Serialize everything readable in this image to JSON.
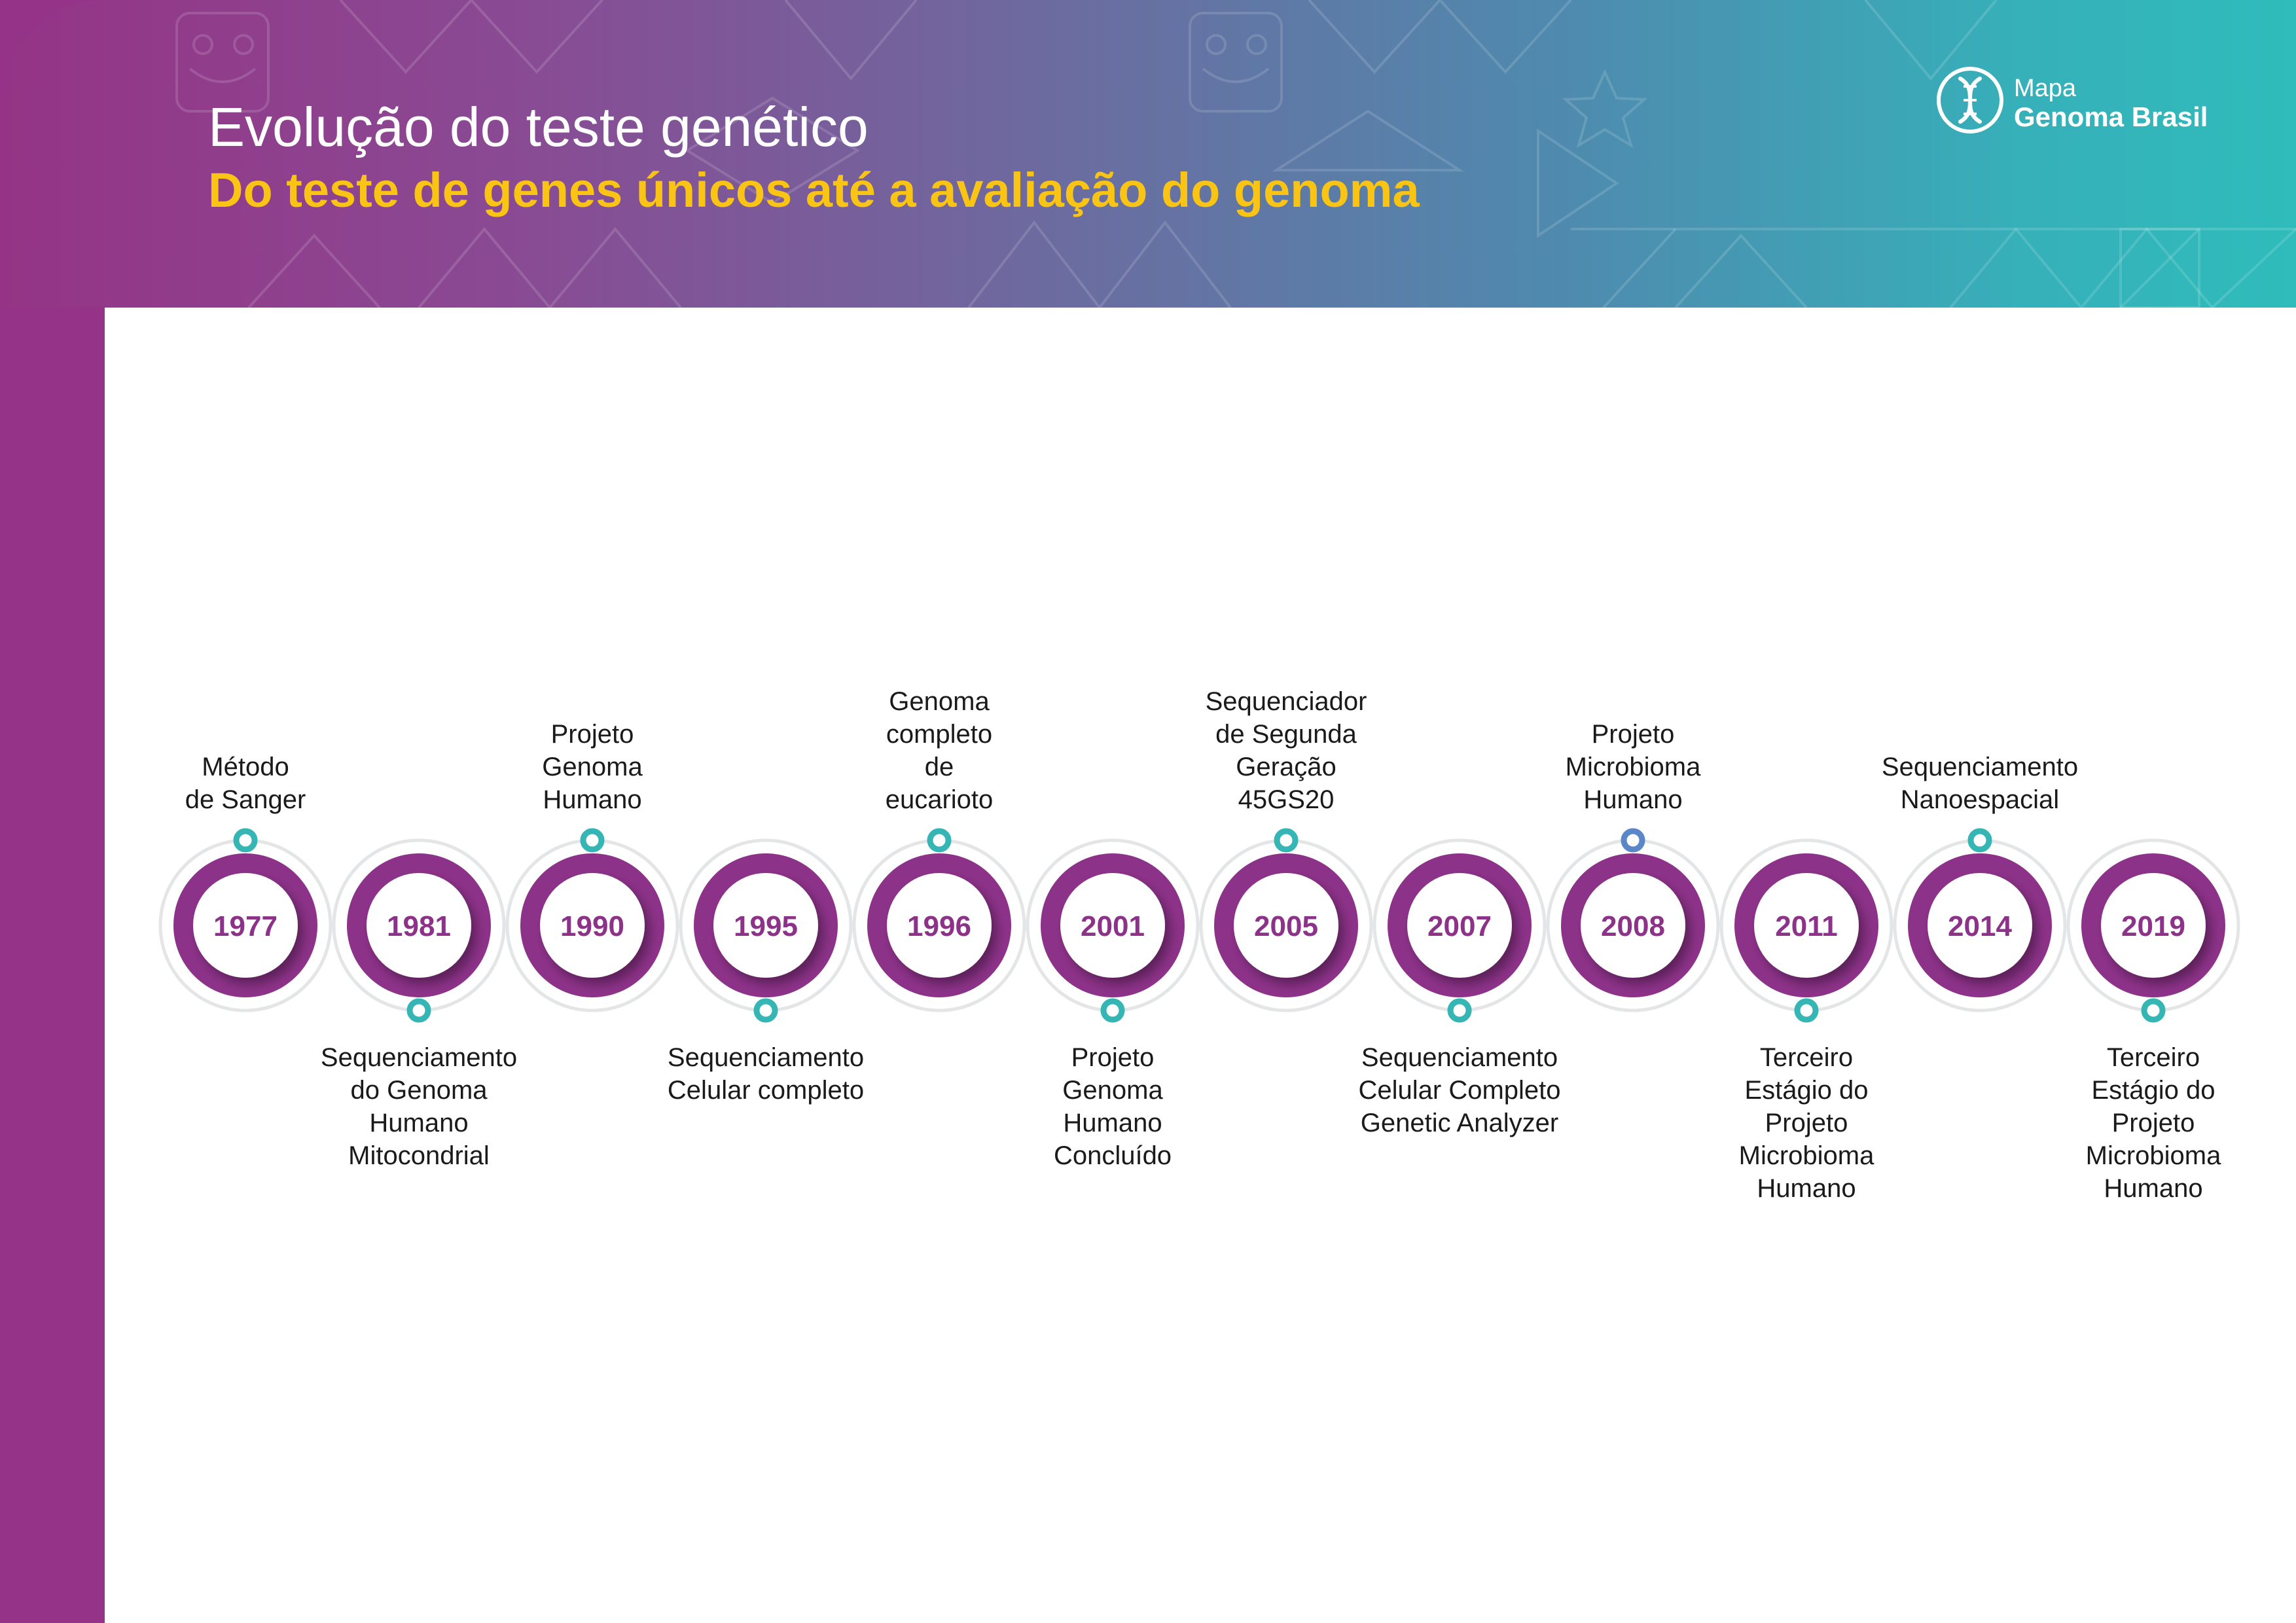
{
  "header": {
    "title": "Evolução do teste genético",
    "subtitle": "Do teste de genes únicos até a avaliação do genoma",
    "colors": {
      "title": "#ffffff",
      "subtitle": "#f9c414",
      "gradient_start": "#953486",
      "gradient_end": "#2fbcbb",
      "sidebar": "#943387"
    }
  },
  "logo": {
    "icon": "dna-icon",
    "line1": "Mapa",
    "line2": "Genoma Brasil"
  },
  "timeline": {
    "colors": {
      "ring": "#8d3289",
      "dot": "#36b5b5",
      "dot_highlight": "#5b86c8",
      "outer_ring": "#e3e5e7"
    },
    "events": [
      {
        "year": "1977",
        "label": "Método\nde Sanger",
        "position": "above"
      },
      {
        "year": "1981",
        "label": "Sequenciamento\ndo Genoma\nHumano\nMitocondrial",
        "position": "below"
      },
      {
        "year": "1990",
        "label": "Projeto\nGenoma\nHumano",
        "position": "above"
      },
      {
        "year": "1995",
        "label": "Sequenciamento\nCelular completo",
        "position": "below"
      },
      {
        "year": "1996",
        "label": "Genoma\ncompleto\nde\neucarioto",
        "position": "above"
      },
      {
        "year": "2001",
        "label": "Projeto\nGenoma\nHumano\nConcluído",
        "position": "below"
      },
      {
        "year": "2005",
        "label": "Sequenciador\nde Segunda\nGeração\n45GS20",
        "position": "above"
      },
      {
        "year": "2007",
        "label": "Sequenciamento\nCelular Completo\nGenetic Analyzer",
        "position": "below"
      },
      {
        "year": "2008",
        "label": "Projeto\nMicrobioma\nHumano",
        "position": "above",
        "highlight": true
      },
      {
        "year": "2011",
        "label": "Terceiro\nEstágio do\nProjeto\nMicrobioma\nHumano",
        "position": "below"
      },
      {
        "year": "2014",
        "label": "Sequenciamento\nNanoespacial",
        "position": "above"
      },
      {
        "year": "2019",
        "label": "Terceiro\nEstágio do\nProjeto\nMicrobioma\nHumano",
        "position": "below"
      }
    ]
  }
}
